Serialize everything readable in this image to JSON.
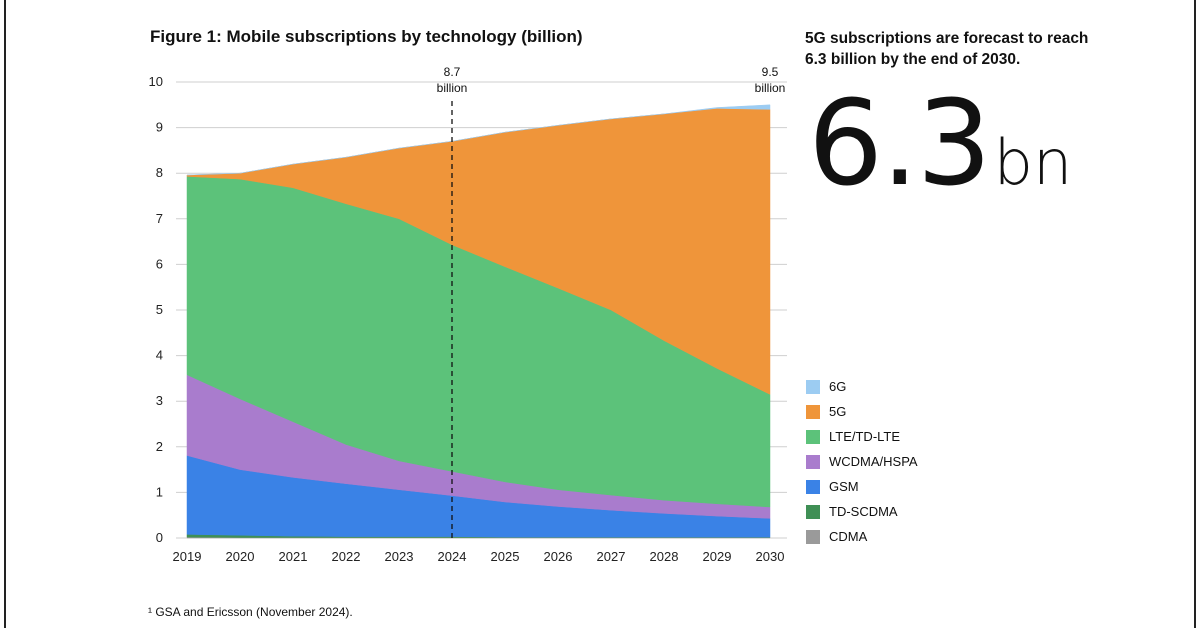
{
  "title": "Figure 1: Mobile subscriptions by technology (billion)",
  "headline": "5G subscriptions are forecast to reach 6.3 billion by the end of 2030.",
  "big_stat": {
    "value": "6.3",
    "unit": "bn"
  },
  "footnote": "¹ GSA and Ericsson (November 2024).",
  "colors": {
    "6G": "#9cccf2",
    "5G": "#ef953a",
    "LTE/TD-LTE": "#5cc27a",
    "WCDMA/HSPA": "#a97ccd",
    "GSM": "#3a82e6",
    "TD-SCDMA": "#3f8f55",
    "CDMA": "#9a9a9a"
  },
  "chart_data": {
    "type": "area",
    "stacked": true,
    "title": "Figure 1: Mobile subscriptions by technology (billion)",
    "x": [
      "2019",
      "2020",
      "2021",
      "2022",
      "2023",
      "2024",
      "2025",
      "2026",
      "2027",
      "2028",
      "2029",
      "2030"
    ],
    "ylim": [
      0,
      10
    ],
    "yticks": [
      0,
      1,
      2,
      3,
      4,
      5,
      6,
      7,
      8,
      9,
      10
    ],
    "grid": true,
    "legend_position": "right",
    "series": [
      {
        "name": "CDMA",
        "values": [
          0.02,
          0.01,
          0.01,
          0.01,
          0.01,
          0.01,
          0.01,
          0.01,
          0.01,
          0.01,
          0.01,
          0.01
        ]
      },
      {
        "name": "TD-SCDMA",
        "values": [
          0.06,
          0.05,
          0.03,
          0.02,
          0.02,
          0.02,
          0.01,
          0.01,
          0.01,
          0.01,
          0.01,
          0.01
        ]
      },
      {
        "name": "GSM",
        "values": [
          1.73,
          1.44,
          1.29,
          1.16,
          1.03,
          0.9,
          0.77,
          0.67,
          0.59,
          0.52,
          0.46,
          0.41
        ]
      },
      {
        "name": "WCDMA/HSPA",
        "values": [
          1.77,
          1.55,
          1.22,
          0.86,
          0.63,
          0.53,
          0.44,
          0.37,
          0.33,
          0.29,
          0.27,
          0.25
        ]
      },
      {
        "name": "LTE/TD-LTE",
        "values": [
          4.35,
          4.82,
          5.13,
          5.28,
          5.31,
          4.97,
          4.72,
          4.42,
          4.06,
          3.5,
          2.97,
          2.47
        ]
      },
      {
        "name": "5G",
        "values": [
          0.03,
          0.13,
          0.52,
          1.02,
          1.55,
          2.27,
          2.95,
          3.57,
          4.19,
          4.97,
          5.7,
          6.25
        ]
      },
      {
        "name": "6G",
        "values": [
          0,
          0,
          0,
          0,
          0,
          0,
          0,
          0,
          0,
          0,
          0.02,
          0.1
        ]
      }
    ],
    "annotations": [
      {
        "x": "2024",
        "lines": [
          "8.7",
          "billion"
        ],
        "dashed_line": true
      },
      {
        "x": "2030",
        "lines": [
          "9.5",
          "billion"
        ],
        "dashed_line": false
      }
    ],
    "legend_order": [
      "6G",
      "5G",
      "LTE/TD-LTE",
      "WCDMA/HSPA",
      "GSM",
      "TD-SCDMA",
      "CDMA"
    ]
  }
}
